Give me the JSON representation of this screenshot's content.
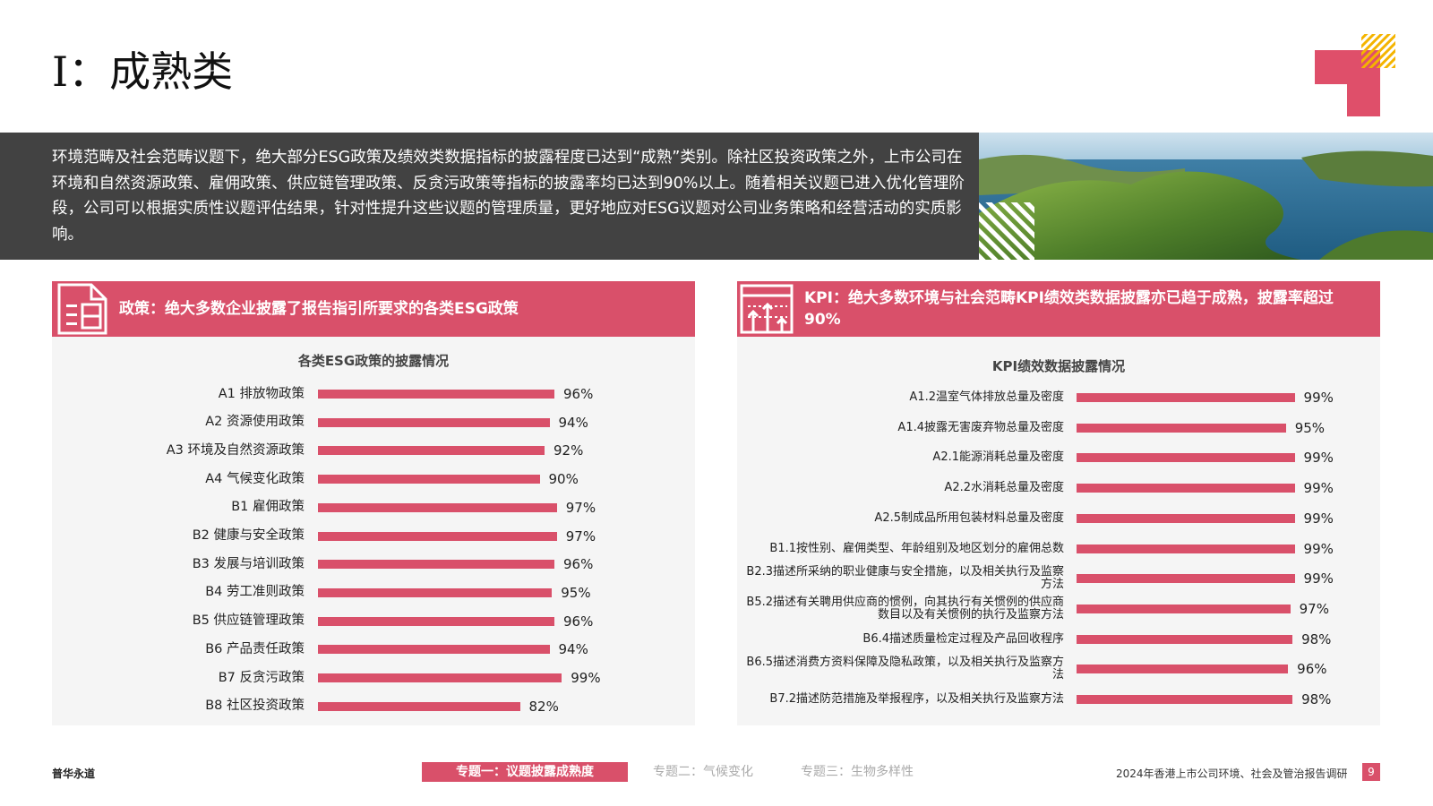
{
  "title": "I：成熟类",
  "intro": "环境范畴及社会范畴议题下，绝大部分ESG政策及绩效类数据指标的披露程度已达到“成熟”类别。除社区投资政策之外，上市公司在环境和自然资源政策、雇佣政策、供应链管理政策、反贪污政策等指标的披露率均已达到90%以上。随着相关议题已进入优化管理阶段，公司可以根据实质性议题评估结果，针对性提升这些议题的管理质量，更好地应对ESG议题对公司业务策略和经营活动的实质影响。",
  "panels": [
    {
      "heading": "政策：绝大多数企业披露了报告指引所要求的各类ESG政策"
    },
    {
      "heading": "KPI：绝大多数环境与社会范畴KPI绩效类数据披露亦已趋于成熟，披露率超过90%"
    }
  ],
  "chart_data": [
    {
      "type": "bar",
      "orientation": "horizontal",
      "title": "各类ESG政策的披露情况",
      "color": "#d9506a",
      "categories": [
        "A1 排放物政策",
        "A2 资源使用政策",
        "A3 环境及自然资源政策",
        "A4 气候变化政策",
        "B1 雇佣政策",
        "B2 健康与安全政策",
        "B3 发展与培训政策",
        "B4 劳工准则政策",
        "B5 供应链管理政策",
        "B6 产品责任政策",
        "B7 反贪污政策",
        "B8 社区投资政策"
      ],
      "values": [
        96,
        94,
        92,
        90,
        97,
        97,
        96,
        95,
        96,
        94,
        99,
        82
      ],
      "value_labels": [
        "96%",
        "94%",
        "92%",
        "90%",
        "97%",
        "97%",
        "96%",
        "95%",
        "96%",
        "94%",
        "99%",
        "82%"
      ]
    },
    {
      "type": "bar",
      "orientation": "horizontal",
      "title": "KPI绩效数据披露情况",
      "color": "#d9506a",
      "categories": [
        "A1.2温室气体排放总量及密度",
        "A1.4披露无害废弃物总量及密度",
        "A2.1能源消耗总量及密度",
        "A2.2水消耗总量及密度",
        "A2.5制成品所用包装材料总量及密度",
        "B1.1按性别、雇佣类型、年龄组别及地区划分的雇佣总数",
        "B2.3描述所采纳的职业健康与安全措施，以及相关执行及监察方法",
        "B5.2描述有关聘用供应商的惯例，向其执行有关惯例的供应商数目以及有关惯例的执行及监察方法",
        "B6.4描述质量检定过程及产品回收程序",
        "B6.5描述消费方资料保障及隐私政策，以及相关执行及监察方法",
        "B7.2描述防范措施及举报程序，以及相关执行及监察方法"
      ],
      "values": [
        99,
        95,
        99,
        99,
        99,
        99,
        99,
        97,
        98,
        96,
        98
      ],
      "value_labels": [
        "99%",
        "95%",
        "99%",
        "99%",
        "99%",
        "99%",
        "99%",
        "97%",
        "98%",
        "96%",
        "98%"
      ]
    }
  ],
  "footer": {
    "brand": "普华永道",
    "tabs": [
      "专题一：议题披露成熟度",
      "专题二：气候变化",
      "专题三：生物多样性"
    ],
    "report": "2024年香港上市公司环境、社会及管治报告调研",
    "page": "9"
  }
}
